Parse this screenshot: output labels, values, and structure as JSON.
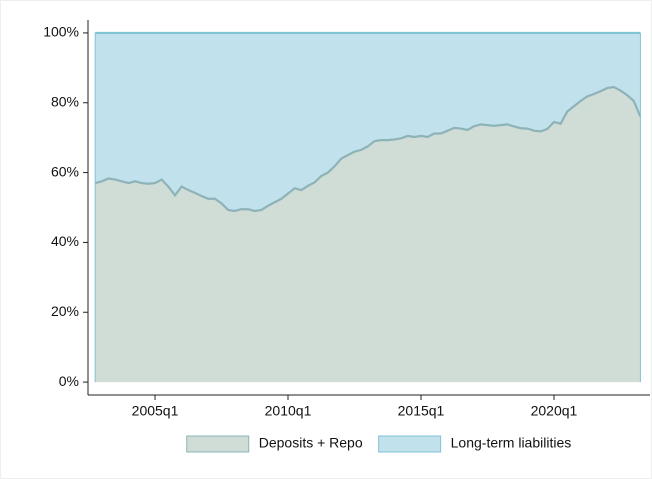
{
  "chart_data": {
    "type": "stacked_area",
    "x": [
      2002.75,
      2003,
      2003.25,
      2003.5,
      2003.75,
      2004,
      2004.25,
      2004.5,
      2004.75,
      2005,
      2005.25,
      2005.5,
      2005.75,
      2006,
      2006.25,
      2006.5,
      2006.75,
      2007,
      2007.25,
      2007.5,
      2007.75,
      2008,
      2008.25,
      2008.5,
      2008.75,
      2009,
      2009.25,
      2009.5,
      2009.75,
      2010,
      2010.25,
      2010.5,
      2010.75,
      2011,
      2011.25,
      2011.5,
      2011.75,
      2012,
      2012.25,
      2012.5,
      2012.75,
      2013,
      2013.25,
      2013.5,
      2013.75,
      2014,
      2014.25,
      2014.5,
      2014.75,
      2015,
      2015.25,
      2015.5,
      2015.75,
      2016,
      2016.25,
      2016.5,
      2016.75,
      2017,
      2017.25,
      2017.5,
      2017.75,
      2018,
      2018.25,
      2018.5,
      2018.75,
      2019,
      2019.25,
      2019.5,
      2019.75,
      2020,
      2020.25,
      2020.5,
      2020.75,
      2021,
      2021.25,
      2021.5,
      2021.75,
      2022,
      2022.25,
      2022.5,
      2022.75,
      2023,
      2023.25
    ],
    "series": [
      {
        "name": "Deposits + Repo",
        "color": "#d0dcd6",
        "line_color": "#8db3b8",
        "values": [
          57,
          57.5,
          58.3,
          58,
          57.5,
          57,
          57.5,
          57,
          56.8,
          57,
          58,
          56,
          53.5,
          56,
          55,
          54.2,
          53.3,
          52.5,
          52.5,
          51.2,
          49.3,
          49,
          49.5,
          49.5,
          49,
          49.3,
          50.5,
          51.5,
          52.5,
          54,
          55.5,
          55,
          56.2,
          57.2,
          59,
          60,
          61.8,
          64,
          65,
          66,
          66.5,
          67.5,
          69,
          69.3,
          69.3,
          69.5,
          69.8,
          70.5,
          70.2,
          70.5,
          70.2,
          71.2,
          71.2,
          72,
          72.8,
          72.6,
          72.2,
          73.3,
          73.8,
          73.6,
          73.4,
          73.6,
          73.8,
          73.2,
          72.7,
          72.6,
          72,
          71.8,
          72.5,
          74.5,
          74,
          77.5,
          79,
          80.5,
          81.8,
          82.5,
          83.3,
          84.2,
          84.5,
          83.5,
          82.2,
          80.5,
          76
        ]
      },
      {
        "name": "Long-term liabilities",
        "color": "#c1e2ec",
        "line_color": "#82c3d4",
        "values": [
          43,
          42.5,
          41.7,
          42,
          42.5,
          43,
          42.5,
          43,
          43.2,
          43,
          42,
          44,
          46.5,
          44,
          45,
          45.8,
          46.7,
          47.5,
          47.5,
          48.8,
          50.7,
          51,
          50.5,
          50.5,
          51,
          50.7,
          49.5,
          48.5,
          47.5,
          46,
          44.5,
          45,
          43.8,
          42.8,
          41,
          40,
          38.2,
          36,
          35,
          34,
          33.5,
          32.5,
          31,
          30.7,
          30.7,
          30.5,
          30.2,
          29.5,
          29.8,
          29.5,
          29.8,
          28.8,
          28.8,
          28,
          27.2,
          27.4,
          27.8,
          26.7,
          26.2,
          26.4,
          26.6,
          26.4,
          26.2,
          26.8,
          27.3,
          27.4,
          28,
          28.2,
          27.5,
          25.5,
          26,
          22.5,
          21,
          19.5,
          18.2,
          17.5,
          16.7,
          15.8,
          15.5,
          16.5,
          17.8,
          19.5,
          24
        ]
      }
    ],
    "xlim": [
      2002.48,
      2023.61
    ],
    "xticks": [
      {
        "value": 2005,
        "label": "2005q1"
      },
      {
        "value": 2010,
        "label": "2010q1"
      },
      {
        "value": 2015,
        "label": "2015q1"
      },
      {
        "value": 2020,
        "label": "2020q1"
      }
    ],
    "ylim": [
      -3.7,
      103.7
    ],
    "yticks": [
      {
        "value": 0,
        "label": "0%"
      },
      {
        "value": 20,
        "label": "20%"
      },
      {
        "value": 40,
        "label": "40%"
      },
      {
        "value": 60,
        "label": "60%"
      },
      {
        "value": 80,
        "label": "80%"
      },
      {
        "value": 100,
        "label": "100%"
      }
    ],
    "grid": false,
    "legend": "bottom"
  }
}
